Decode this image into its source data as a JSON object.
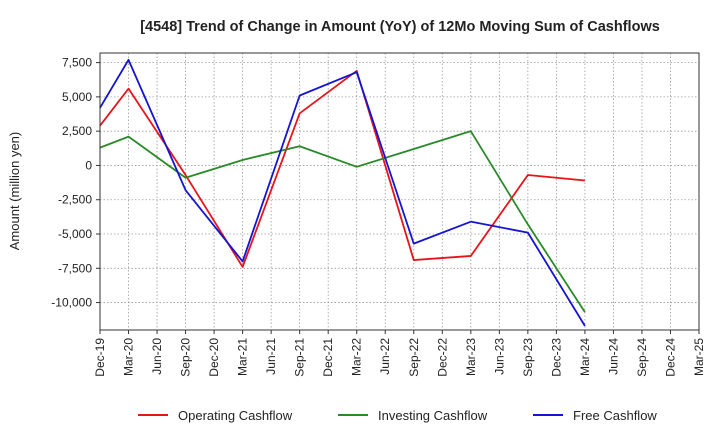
{
  "chart_data": {
    "type": "line",
    "title": "[4548]  Trend of Change in Amount (YoY) of 12Mo Moving Sum of Cashflows",
    "xlabel": "",
    "ylabel": "Amount (million yen)",
    "ylim": [
      -12000,
      8200
    ],
    "yticks": [
      7500,
      5000,
      2500,
      0,
      -2500,
      -5000,
      -7500,
      -10000
    ],
    "ytick_labels": [
      "7,500",
      "5,000",
      "2,500",
      "0",
      "-2,500",
      "-5,000",
      "-7,500",
      "-10,000"
    ],
    "categories": [
      "Dec-19",
      "Mar-20",
      "Jun-20",
      "Sep-20",
      "Dec-20",
      "Mar-21",
      "Jun-21",
      "Sep-21",
      "Dec-21",
      "Mar-22",
      "Jun-22",
      "Sep-22",
      "Dec-22",
      "Mar-23",
      "Jun-23",
      "Sep-23",
      "Dec-23",
      "Mar-24",
      "Jun-24",
      "Sep-24",
      "Dec-24",
      "Mar-25"
    ],
    "grid": true,
    "legend_position": "bottom",
    "series": [
      {
        "name": "Operating Cashflow",
        "color": "#e8141a",
        "points": [
          [
            0,
            2900
          ],
          [
            1,
            5600
          ],
          [
            3,
            -700
          ],
          [
            5,
            -7400
          ],
          [
            7,
            3800
          ],
          [
            9,
            6900
          ],
          [
            11,
            -6900
          ],
          [
            13,
            -6600
          ],
          [
            15,
            -700
          ],
          [
            17,
            -1100
          ]
        ]
      },
      {
        "name": "Investing Cashflow",
        "color": "#2a8a2a",
        "points": [
          [
            0,
            1300
          ],
          [
            1,
            2100
          ],
          [
            3,
            -900
          ],
          [
            5,
            400
          ],
          [
            7,
            1400
          ],
          [
            9,
            -100
          ],
          [
            11,
            1200
          ],
          [
            13,
            2500
          ],
          [
            15,
            -4300
          ],
          [
            17,
            -10700
          ]
        ]
      },
      {
        "name": "Free Cashflow",
        "color": "#1414d2",
        "points": [
          [
            0,
            4200
          ],
          [
            1,
            7700
          ],
          [
            3,
            -1800
          ],
          [
            5,
            -7000
          ],
          [
            7,
            5100
          ],
          [
            9,
            6800
          ],
          [
            11,
            -5700
          ],
          [
            13,
            -4100
          ],
          [
            15,
            -4900
          ],
          [
            17,
            -11700
          ]
        ]
      }
    ]
  }
}
